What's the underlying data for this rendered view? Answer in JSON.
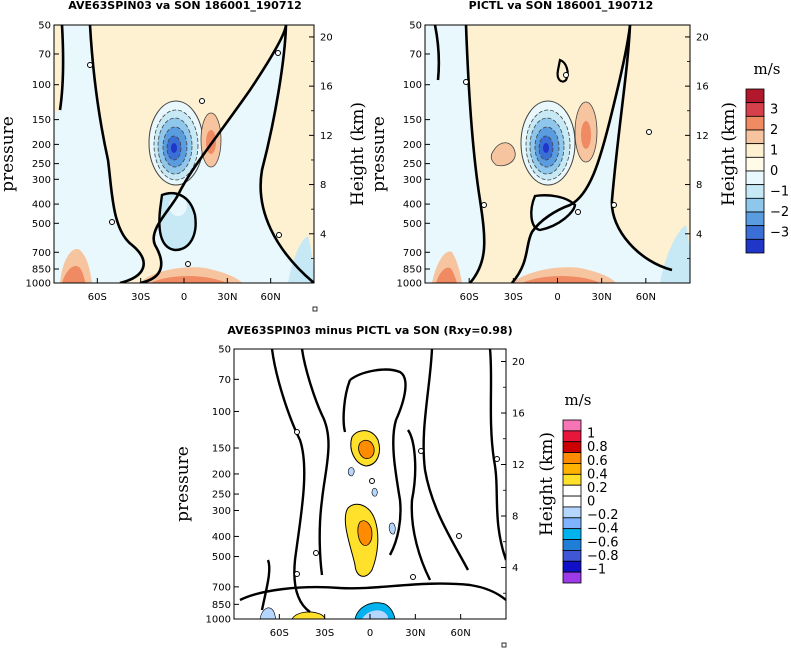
{
  "chart_data": [
    {
      "type": "contour",
      "title": "AVE63SPIN03 va SON 186001_190712",
      "ylabel": "pressure",
      "ylabel_right": "Height (km)",
      "x_ticks": [
        "60S",
        "30S",
        "0",
        "30N",
        "60N"
      ],
      "y_ticks": [
        "50",
        "70",
        "100",
        "150",
        "200",
        "250",
        "300",
        "400",
        "500",
        "700",
        "850",
        "1000"
      ],
      "height_ticks": [
        "20",
        "16",
        "12",
        "8",
        "4"
      ],
      "features": [
        {
          "lat": -5,
          "p": 200,
          "value": -3,
          "kind": "min"
        },
        {
          "lat": 15,
          "p": 200,
          "value": 1,
          "kind": "max"
        },
        {
          "lat": -3,
          "p": 400,
          "value": -1,
          "kind": "min"
        },
        {
          "lat": -75,
          "p": 900,
          "value": 2,
          "kind": "max"
        },
        {
          "lat": 0,
          "p": 950,
          "value": 3,
          "kind": "max"
        }
      ]
    },
    {
      "type": "contour",
      "title": "PICTL va SON 186001_190712",
      "ylabel": "pressure",
      "ylabel_right": "Height (km)",
      "x_ticks": [
        "60S",
        "30S",
        "0",
        "30N",
        "60N"
      ],
      "y_ticks": [
        "50",
        "70",
        "100",
        "150",
        "200",
        "250",
        "300",
        "400",
        "500",
        "700",
        "850",
        "1000"
      ],
      "height_ticks": [
        "20",
        "16",
        "12",
        "8",
        "4"
      ],
      "features": [
        {
          "lat": -5,
          "p": 200,
          "value": -3,
          "kind": "min"
        },
        {
          "lat": 17,
          "p": 180,
          "value": 1,
          "kind": "max"
        },
        {
          "lat": -40,
          "p": 230,
          "value": 0.5,
          "kind": "max"
        },
        {
          "lat": -75,
          "p": 900,
          "value": 2,
          "kind": "max"
        },
        {
          "lat": 0,
          "p": 950,
          "value": 3,
          "kind": "max"
        }
      ]
    },
    {
      "type": "contour",
      "title": "AVE63SPIN03 minus PICTL va SON (Rxy=0.98)",
      "ylabel": "pressure",
      "ylabel_right": "Height (km)",
      "x_ticks": [
        "60S",
        "30S",
        "0",
        "30N",
        "60N"
      ],
      "y_ticks": [
        "50",
        "70",
        "100",
        "150",
        "200",
        "250",
        "300",
        "400",
        "500",
        "700",
        "850",
        "1000"
      ],
      "height_ticks": [
        "20",
        "16",
        "12",
        "8",
        "4"
      ],
      "features": [
        {
          "lat": -5,
          "p": 150,
          "value": 0.6,
          "kind": "max"
        },
        {
          "lat": -7,
          "p": 400,
          "value": 0.6,
          "kind": "max"
        },
        {
          "lat": -3,
          "p": 1000,
          "value": -0.6,
          "kind": "min"
        }
      ]
    }
  ],
  "colorbar_top": {
    "unit": "m/s",
    "labels": [
      "3",
      "2",
      "1",
      "0",
      "−1",
      "−2",
      "−3"
    ],
    "colors": [
      "#b2182b",
      "#d6404a",
      "#ef8a62",
      "#f7c4a0",
      "#fdf1d2",
      "#fffbe8",
      "#e8f8fd",
      "#c6e9f5",
      "#8ec6ec",
      "#5a9ce0",
      "#3a6fd6",
      "#2036c8"
    ]
  },
  "colorbar_bottom": {
    "unit": "m/s",
    "labels": [
      "1",
      "0.8",
      "0.6",
      "0.4",
      "0.2",
      "0",
      "−0.2",
      "−0.4",
      "−0.6",
      "−0.8",
      "−1"
    ],
    "colors": [
      "#f774b5",
      "#e8163a",
      "#cc0000",
      "#ff8c00",
      "#ffb300",
      "#ffe02a",
      "#ffffff",
      "#ffffff",
      "#b5d7ff",
      "#7fb2ff",
      "#00b2ee",
      "#1f7fd6",
      "#3f56d6",
      "#1010c8",
      "#9d3be8"
    ]
  }
}
